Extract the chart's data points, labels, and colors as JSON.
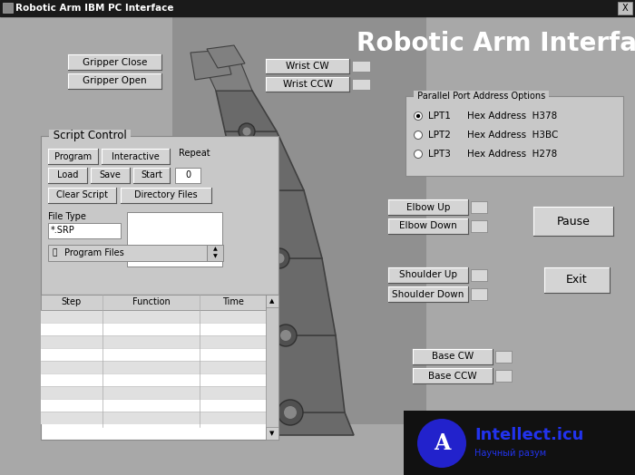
{
  "title_bar_text": "Robotic Arm IBM PC Interface",
  "main_bg": "#a8a8a8",
  "heading_text": "Robotic Arm Interface",
  "gripper_close": "Gripper Close",
  "gripper_open": "Gripper Open",
  "wrist_cw": "Wrist CW",
  "wrist_ccw": "Wrist CCW",
  "parallel_port_label": "Parallel Port Address Options",
  "lpt_options": [
    {
      "label": "LPT1",
      "hex": "Hex Address  H378",
      "selected": true
    },
    {
      "label": "LPT2",
      "hex": "Hex Address  H3BC",
      "selected": false
    },
    {
      "label": "LPT3",
      "hex": "Hex Address  H278",
      "selected": false
    }
  ],
  "elbow_up": "Elbow Up",
  "elbow_down": "Elbow Down",
  "shoulder_up": "Shoulder Up",
  "shoulder_down": "Shoulder Down",
  "base_cw": "Base CW",
  "base_ccw": "Base CCW",
  "pause_btn": "Pause",
  "exit_btn": "Exit",
  "script_control_label": "Script Control",
  "sc_btn_program": "Program",
  "sc_btn_interactive": "Interactive",
  "repeat_label": "Repeat",
  "sc_btn_load": "Load",
  "sc_btn_save": "Save",
  "sc_btn_start": "Start",
  "repeat_value": "0",
  "sc_btn_clear": "Clear Script",
  "sc_btn_dir": "Directory Files",
  "file_type_label": "File Type",
  "file_type_value": "*.SRP",
  "program_files_label": "Program Files",
  "table_headers": [
    "Step",
    "Function",
    "Time"
  ],
  "intellect_text": "Intellect.icu",
  "intellect_sub": "Научный разум",
  "intellect_circle_color": "#2222cc",
  "intellect_text_color": "#2233ee",
  "watermark_bg": "#111111"
}
